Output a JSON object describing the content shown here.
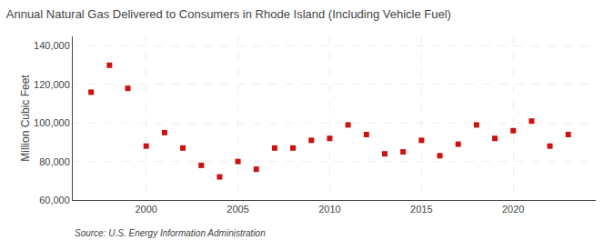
{
  "chart_data": {
    "type": "scatter",
    "title": "Annual Natural Gas Delivered to Consumers in Rhode Island (Including Vehicle Fuel)",
    "ylabel": "Million Cubic Feet",
    "annotations": [
      "Source: U.S. Energy Information Administration"
    ],
    "x": [
      1997,
      1998,
      1999,
      2000,
      2001,
      2002,
      2003,
      2004,
      2005,
      2006,
      2007,
      2008,
      2009,
      2010,
      2011,
      2012,
      2013,
      2014,
      2015,
      2016,
      2017,
      2018,
      2019,
      2020,
      2021,
      2022,
      2023
    ],
    "values": [
      116000,
      130000,
      118000,
      88000,
      95000,
      87000,
      78000,
      72000,
      80000,
      76000,
      87000,
      87000,
      91000,
      92000,
      99000,
      94000,
      84000,
      85000,
      91000,
      83000,
      89000,
      99000,
      92000,
      96000,
      101000,
      88000,
      94000
    ],
    "color": "#cc1111",
    "marker": "square",
    "xlim": [
      1996,
      2024.5
    ],
    "ylim": [
      60000,
      145000
    ],
    "xticks": [
      2000,
      2005,
      2010,
      2015,
      2020
    ],
    "yticks": [
      {
        "value": 60000,
        "label": "60,000"
      },
      {
        "value": 80000,
        "label": "80,000"
      },
      {
        "value": 100000,
        "label": "100,000"
      },
      {
        "value": 120000,
        "label": "120,000"
      },
      {
        "value": 140000,
        "label": "140,000"
      }
    ],
    "grid": true
  }
}
